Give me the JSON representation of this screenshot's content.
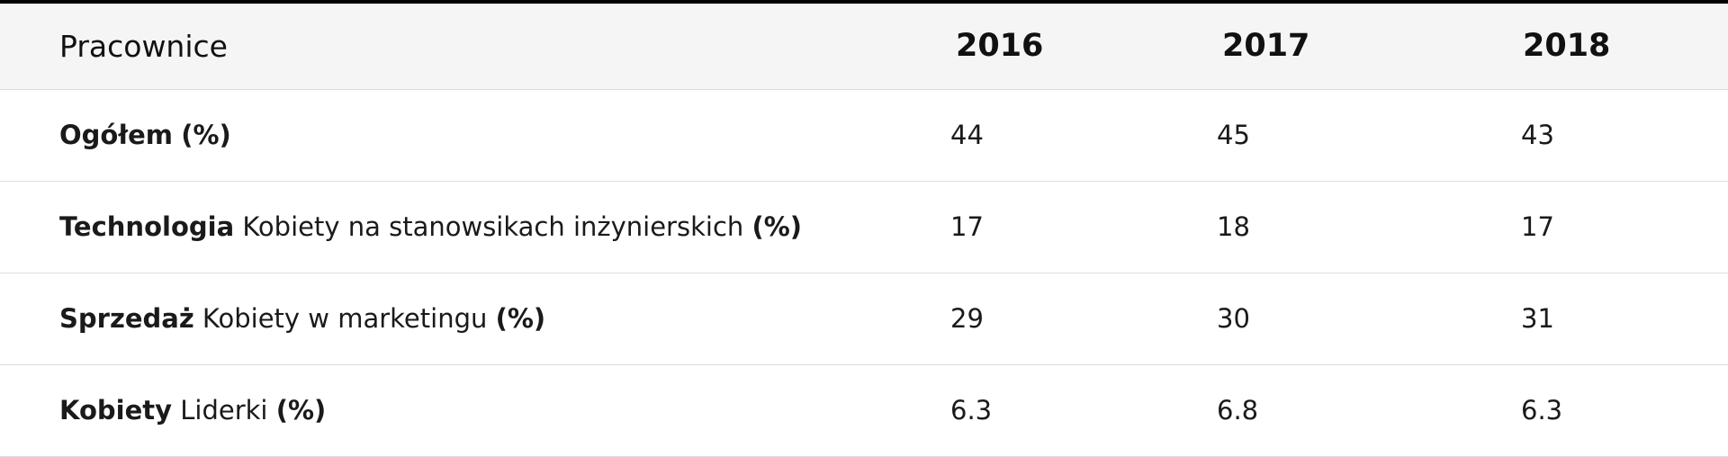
{
  "table": {
    "header": {
      "label": "Pracownice",
      "years": [
        "2016",
        "2017",
        "2018"
      ]
    },
    "rows": [
      {
        "bold": "Ogółem",
        "text": "",
        "suffix": "(%)",
        "values": [
          "44",
          "45",
          "43"
        ]
      },
      {
        "bold": "Technologia",
        "text": "Kobiety na stanowsikach inżynierskich",
        "suffix": "(%)",
        "values": [
          "17",
          "18",
          "17"
        ]
      },
      {
        "bold": "Sprzedaż",
        "text": "Kobiety w marketingu",
        "suffix": "(%)",
        "values": [
          "29",
          "30",
          "31"
        ]
      },
      {
        "bold": "Kobiety",
        "text": "Liderki",
        "suffix": "(%)",
        "values": [
          "6.3",
          "6.8",
          "6.3"
        ]
      }
    ]
  }
}
